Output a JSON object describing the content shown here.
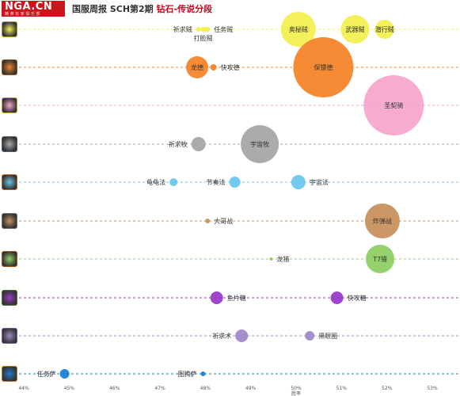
{
  "header": {
    "logo": "NGA.CN",
    "logo_sub": "精 英 玩 家 俱 乐 部",
    "title_main": "国服周报 SCH第2期",
    "title_highlight": "钻石-传说分段"
  },
  "classes": [
    {
      "icon": "rogue-class-icon",
      "color": "#f3ef52",
      "border": "#a79d23"
    },
    {
      "icon": "paladin-class-icon",
      "color": "#f4862a",
      "border": "#a95612"
    },
    {
      "icon": "paladin-class-icon",
      "color": "#f5a6cc",
      "border": "#c8a52a"
    },
    {
      "icon": "priest-class-icon",
      "color": "#a7a7a7",
      "border": "#50606e"
    },
    {
      "icon": "mage-class-icon",
      "color": "#6cc7ee",
      "border": "#c0641c"
    },
    {
      "icon": "warrior-class-icon",
      "color": "#c8915f",
      "border": "#6a7480"
    },
    {
      "icon": "hunter-class-icon",
      "color": "#8fd064",
      "border": "#a24a16"
    },
    {
      "icon": "warlock-class-icon",
      "color": "#9a3ac8",
      "border": "#4b7a2c"
    },
    {
      "icon": "priest-class-icon",
      "color": "#9d89c9",
      "border": "#6a5aa0"
    },
    {
      "icon": "shaman-class-icon",
      "color": "#1c7fd6",
      "border": "#b6761c"
    }
  ],
  "chart_data": {
    "type": "scatter",
    "xlabel": "胜率",
    "xlim": [
      44,
      53
    ],
    "x_ticks": [
      "44%",
      "45%",
      "46%",
      "47%",
      "48%",
      "49%",
      "50%",
      "51%",
      "52%",
      "53%"
    ],
    "grid": false,
    "series": [
      {
        "row": 0,
        "points": [
          {
            "label": "祈求贼",
            "x": 47.85,
            "size": 3,
            "label_side": "left"
          },
          {
            "label": "打脸贼",
            "x": 47.95,
            "size": 3,
            "label_side": "below"
          },
          {
            "label": "",
            "x": 48.0,
            "size": 3,
            "label_side": "none"
          },
          {
            "label": "任务贼",
            "x": 48.05,
            "size": 3,
            "label_side": "right"
          },
          {
            "label": "奥秘贼",
            "x": 50.05,
            "size": 22,
            "label_side": "center"
          },
          {
            "label": "武器贼",
            "x": 51.3,
            "size": 18,
            "label_side": "center"
          },
          {
            "label": "潜行贼",
            "x": 51.95,
            "size": 12,
            "label_side": "center"
          }
        ]
      },
      {
        "row": 1,
        "points": [
          {
            "label": "龙德",
            "x": 47.82,
            "size": 14,
            "label_side": "center"
          },
          {
            "label": "快攻德",
            "x": 48.18,
            "size": 4,
            "label_side": "right"
          },
          {
            "label": "保镖德",
            "x": 50.6,
            "size": 38,
            "label_side": "center"
          }
        ]
      },
      {
        "row": 2,
        "points": [
          {
            "label": "圣契骑",
            "x": 52.15,
            "size": 38,
            "label_side": "center"
          }
        ]
      },
      {
        "row": 3,
        "points": [
          {
            "label": "祈求牧",
            "x": 47.85,
            "size": 9,
            "label_side": "left"
          },
          {
            "label": "宇宙牧",
            "x": 49.2,
            "size": 24,
            "label_side": "center"
          }
        ]
      },
      {
        "row": 4,
        "points": [
          {
            "label": "龟龟法",
            "x": 47.3,
            "size": 5,
            "label_side": "left"
          },
          {
            "label": "节奏法",
            "x": 48.65,
            "size": 7,
            "label_side": "left"
          },
          {
            "label": "宇宙法",
            "x": 50.05,
            "size": 9,
            "label_side": "right"
          }
        ]
      },
      {
        "row": 5,
        "points": [
          {
            "label": "大哥战",
            "x": 48.05,
            "size": 3,
            "label_side": "right"
          },
          {
            "label": "炸弹战",
            "x": 51.9,
            "size": 22,
            "label_side": "center"
          }
        ]
      },
      {
        "row": 6,
        "points": [
          {
            "label": "龙猎",
            "x": 49.45,
            "size": 2,
            "label_side": "right"
          },
          {
            "label": "T7猎",
            "x": 51.85,
            "size": 18,
            "label_side": "center"
          }
        ]
      },
      {
        "row": 7,
        "points": [
          {
            "label": "鱼片糖",
            "x": 48.25,
            "size": 8,
            "label_side": "right"
          },
          {
            "label": "快攻糖",
            "x": 50.9,
            "size": 8,
            "label_side": "right"
          }
        ]
      },
      {
        "row": 8,
        "points": [
          {
            "label": "祈求术",
            "x": 48.8,
            "size": 8,
            "label_side": "left"
          },
          {
            "label": "黑眼圈",
            "x": 50.3,
            "size": 6,
            "label_side": "right"
          }
        ]
      },
      {
        "row": 9,
        "points": [
          {
            "label": "任务萨",
            "x": 44.9,
            "size": 6,
            "label_side": "left"
          },
          {
            "label": "图腾萨",
            "x": 47.95,
            "size": 3,
            "label_side": "left"
          }
        ]
      }
    ]
  }
}
